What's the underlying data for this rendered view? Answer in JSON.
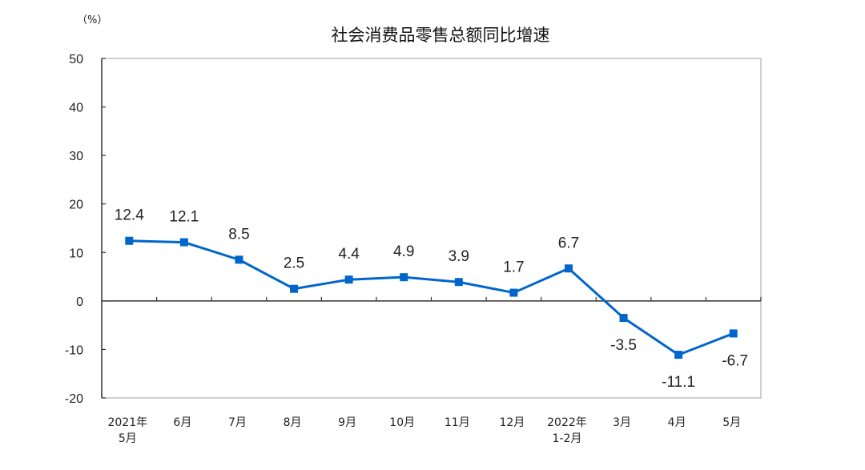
{
  "chart_data": {
    "type": "line",
    "title": "社会消费品零售总额同比增速",
    "ylabel": "（%）",
    "xlabel": "",
    "ylim": [
      -20,
      50
    ],
    "yticks": [
      50,
      40,
      30,
      20,
      10,
      0,
      -10,
      -20
    ],
    "categories": [
      [
        "2021年",
        "5月"
      ],
      [
        "6月"
      ],
      [
        "7月"
      ],
      [
        "8月"
      ],
      [
        "9月"
      ],
      [
        "10月"
      ],
      [
        "11月"
      ],
      [
        "12月"
      ],
      [
        "2022年",
        "1-2月"
      ],
      [
        "3月"
      ],
      [
        "4月"
      ],
      [
        "5月"
      ]
    ],
    "series": [
      {
        "name": "社会消费品零售总额同比增速",
        "values": [
          12.4,
          12.1,
          8.5,
          2.5,
          4.4,
          4.9,
          3.9,
          1.7,
          6.7,
          -3.5,
          -11.1,
          -6.7
        ],
        "color": "#0066cc"
      }
    ],
    "data_labels": [
      "12.4",
      "12.1",
      "8.5",
      "2.5",
      "4.4",
      "4.9",
      "3.9",
      "1.7",
      "6.7",
      "-3.5",
      "-11.1",
      "-6.7"
    ],
    "grid": false,
    "legend": "none"
  },
  "header": {
    "unit": "（%）",
    "title": "社会消费品零售总额同比增速"
  }
}
